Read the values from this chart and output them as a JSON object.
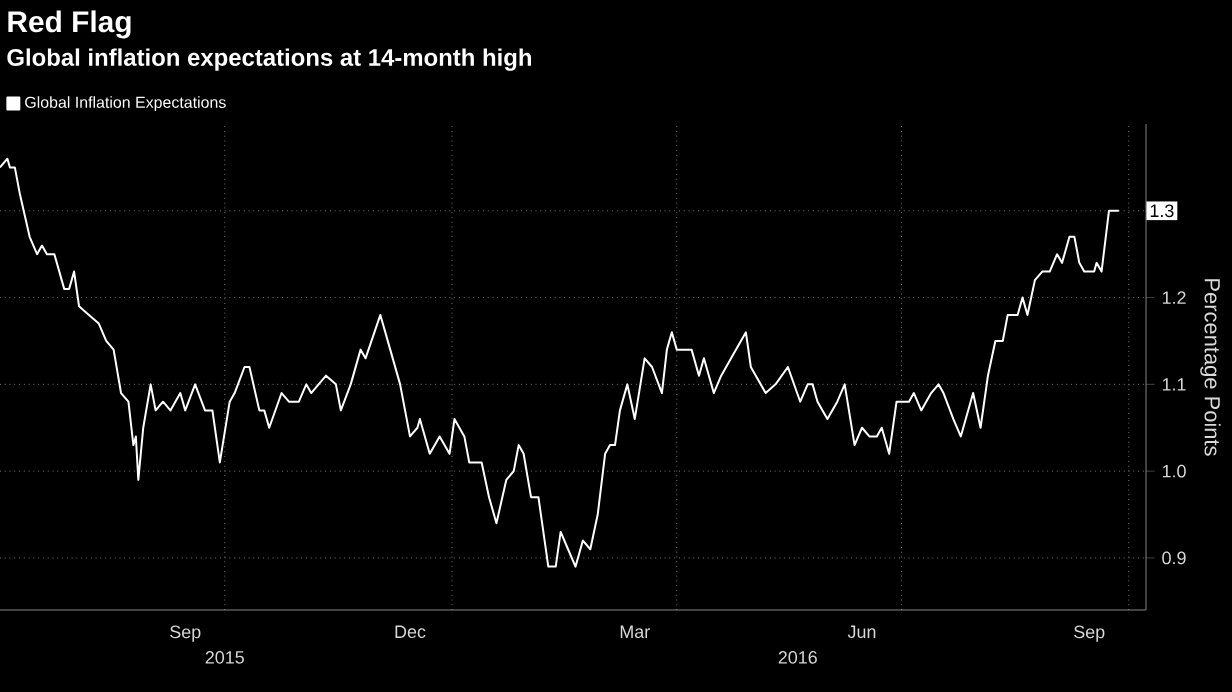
{
  "chart_data": {
    "type": "line",
    "title": "Red Flag",
    "subtitle": "Global inflation expectations at 14-month high",
    "ylabel": "Percentage Points",
    "x": [
      "2015-07-02",
      "2015-07-05",
      "2015-07-06",
      "2015-07-08",
      "2015-07-10",
      "2015-07-14",
      "2015-07-17",
      "2015-07-19",
      "2015-07-21",
      "2015-07-24",
      "2015-07-28",
      "2015-07-30",
      "2015-08-01",
      "2015-08-03",
      "2015-08-07",
      "2015-08-11",
      "2015-08-14",
      "2015-08-17",
      "2015-08-20",
      "2015-08-23",
      "2015-08-25",
      "2015-08-26",
      "2015-08-27",
      "2015-08-29",
      "2015-09-01",
      "2015-09-03",
      "2015-09-06",
      "2015-09-09",
      "2015-09-13",
      "2015-09-15",
      "2015-09-19",
      "2015-09-23",
      "2015-09-26",
      "2015-09-29",
      "2015-10-03",
      "2015-10-05",
      "2015-10-09",
      "2015-10-11",
      "2015-10-15",
      "2015-10-17",
      "2015-10-19",
      "2015-10-24",
      "2015-10-27",
      "2015-10-31",
      "2015-11-03",
      "2015-11-05",
      "2015-11-11",
      "2015-11-15",
      "2015-11-17",
      "2015-11-21",
      "2015-11-25",
      "2015-11-27",
      "2015-12-03",
      "2015-12-07",
      "2015-12-11",
      "2015-12-15",
      "2015-12-18",
      "2015-12-19",
      "2015-12-23",
      "2015-12-27",
      "2015-12-31",
      "2016-01-02",
      "2016-01-06",
      "2016-01-08",
      "2016-01-13",
      "2016-01-16",
      "2016-01-19",
      "2016-01-23",
      "2016-01-26",
      "2016-01-28",
      "2016-01-30",
      "2016-02-02",
      "2016-02-05",
      "2016-02-09",
      "2016-02-12",
      "2016-02-14",
      "2016-02-17",
      "2016-02-20",
      "2016-02-23",
      "2016-02-26",
      "2016-02-29",
      "2016-03-03",
      "2016-03-05",
      "2016-03-07",
      "2016-03-09",
      "2016-03-12",
      "2016-03-15",
      "2016-03-19",
      "2016-03-22",
      "2016-03-26",
      "2016-03-28",
      "2016-03-30",
      "2016-04-01",
      "2016-04-03",
      "2016-04-07",
      "2016-04-10",
      "2016-04-12",
      "2016-04-16",
      "2016-04-19",
      "2016-04-23",
      "2016-04-29",
      "2016-05-01",
      "2016-05-07",
      "2016-05-11",
      "2016-05-16",
      "2016-05-21",
      "2016-05-24",
      "2016-05-26",
      "2016-05-28",
      "2016-06-01",
      "2016-06-05",
      "2016-06-08",
      "2016-06-12",
      "2016-06-15",
      "2016-06-18",
      "2016-06-21",
      "2016-06-23",
      "2016-06-26",
      "2016-06-29",
      "2016-07-04",
      "2016-07-06",
      "2016-07-09",
      "2016-07-13",
      "2016-07-16",
      "2016-07-18",
      "2016-07-22",
      "2016-07-25",
      "2016-07-30",
      "2016-08-02",
      "2016-08-05",
      "2016-08-08",
      "2016-08-11",
      "2016-08-13",
      "2016-08-17",
      "2016-08-19",
      "2016-08-21",
      "2016-08-24",
      "2016-08-27",
      "2016-08-30",
      "2016-09-02",
      "2016-09-04",
      "2016-09-07",
      "2016-09-09",
      "2016-09-11",
      "2016-09-13",
      "2016-09-17",
      "2016-09-18",
      "2016-09-20",
      "2016-09-23",
      "2016-09-27"
    ],
    "series": [
      {
        "name": "Global Inflation Expectations",
        "color": "#ffffff",
        "values": [
          1.35,
          1.36,
          1.35,
          1.35,
          1.32,
          1.27,
          1.25,
          1.26,
          1.25,
          1.25,
          1.21,
          1.21,
          1.23,
          1.19,
          1.18,
          1.17,
          1.15,
          1.14,
          1.09,
          1.08,
          1.03,
          1.04,
          0.99,
          1.05,
          1.1,
          1.07,
          1.08,
          1.07,
          1.09,
          1.07,
          1.1,
          1.07,
          1.07,
          1.01,
          1.08,
          1.09,
          1.12,
          1.12,
          1.07,
          1.07,
          1.05,
          1.09,
          1.08,
          1.08,
          1.1,
          1.09,
          1.11,
          1.1,
          1.07,
          1.1,
          1.14,
          1.13,
          1.18,
          1.14,
          1.1,
          1.04,
          1.05,
          1.06,
          1.02,
          1.04,
          1.02,
          1.06,
          1.04,
          1.01,
          1.01,
          0.97,
          0.94,
          0.99,
          1.0,
          1.03,
          1.02,
          0.97,
          0.97,
          0.89,
          0.89,
          0.93,
          0.91,
          0.89,
          0.92,
          0.91,
          0.95,
          1.02,
          1.03,
          1.03,
          1.07,
          1.1,
          1.06,
          1.13,
          1.12,
          1.09,
          1.14,
          1.16,
          1.14,
          1.14,
          1.14,
          1.11,
          1.13,
          1.09,
          1.11,
          1.13,
          1.16,
          1.12,
          1.09,
          1.1,
          1.12,
          1.08,
          1.1,
          1.1,
          1.08,
          1.06,
          1.08,
          1.1,
          1.03,
          1.05,
          1.04,
          1.04,
          1.05,
          1.02,
          1.08,
          1.08,
          1.09,
          1.07,
          1.09,
          1.1,
          1.09,
          1.06,
          1.04,
          1.09,
          1.05,
          1.11,
          1.15,
          1.15,
          1.18,
          1.18,
          1.2,
          1.18,
          1.22,
          1.23,
          1.23,
          1.25,
          1.24,
          1.27,
          1.27,
          1.24,
          1.23,
          1.23,
          1.24,
          1.23,
          1.3,
          1.3
        ]
      }
    ],
    "xlim": [
      "2015-07-02",
      "2016-10-08"
    ],
    "xticks": [
      {
        "value": "2015-09-15",
        "label": "Sep"
      },
      {
        "value": "2015-12-15",
        "label": "Dec"
      },
      {
        "value": "2016-03-15",
        "label": "Mar"
      },
      {
        "value": "2016-06-15",
        "label": "Jun"
      },
      {
        "value": "2016-09-15",
        "label": "Sep"
      },
      {
        "value": "2015-10-01",
        "label": null
      },
      {
        "value": "2016-01-01",
        "label": null
      },
      {
        "value": "2016-04-01",
        "label": null
      },
      {
        "value": "2016-07-01",
        "label": null
      },
      {
        "value": "2016-10-01",
        "label": null
      }
    ],
    "x2lim": [
      "2015-07-02",
      "2016-10-08"
    ],
    "x2ticks": [
      {
        "value": "2015-10-01",
        "label": "2015"
      },
      {
        "value": "2016-05-20",
        "label": "2016"
      }
    ],
    "ylim": [
      0.84,
      1.4
    ],
    "yticks": [
      {
        "value": 0.9,
        "label": "0.9"
      },
      {
        "value": 1.0,
        "label": "1.0"
      },
      {
        "value": 1.1,
        "label": "1.1"
      },
      {
        "value": 1.2,
        "label": "1.2"
      },
      {
        "value": 1.3,
        "label": null
      }
    ],
    "annotations": [
      {
        "text": "1.3",
        "x": "2016-09-27",
        "y": 1.3
      }
    ],
    "grid": true,
    "legend": "top left"
  }
}
